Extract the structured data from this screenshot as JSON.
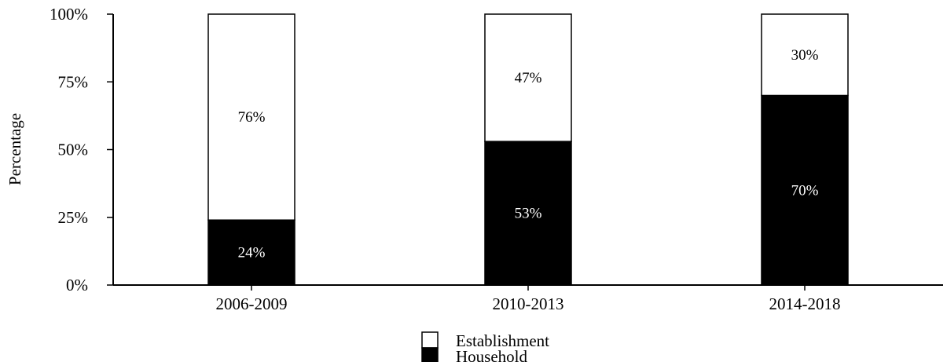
{
  "chart_data": {
    "type": "bar",
    "stacked": true,
    "title": "",
    "xlabel": "",
    "ylabel": "Percentage",
    "ylim": [
      0,
      100
    ],
    "yticks": [
      "0%",
      "25%",
      "50%",
      "75%",
      "100%"
    ],
    "categories": [
      "2006-2009",
      "2010-2013",
      "2014-2018"
    ],
    "series": [
      {
        "name": "Household",
        "values": [
          24,
          53,
          70
        ],
        "labels": [
          "24%",
          "53%",
          "70%"
        ],
        "color": "#000000",
        "label_color": "#ffffff"
      },
      {
        "name": "Establishment",
        "values": [
          76,
          47,
          30
        ],
        "labels": [
          "76%",
          "47%",
          "30%"
        ],
        "color": "#ffffff",
        "label_color": "#000000"
      }
    ],
    "legend_position": "bottom-center",
    "legend_order": [
      "Establishment",
      "Household"
    ],
    "grid": false
  }
}
